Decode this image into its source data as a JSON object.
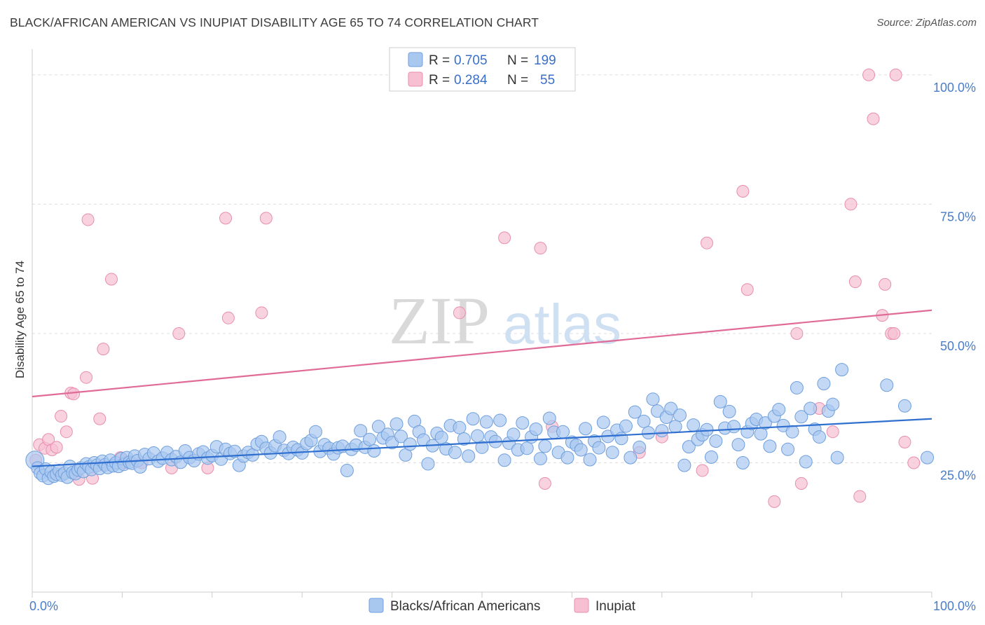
{
  "title": "BLACK/AFRICAN AMERICAN VS INUPIAT DISABILITY AGE 65 TO 74 CORRELATION CHART",
  "source": "Source: ZipAtlas.com",
  "watermark": {
    "zip": "ZIP",
    "atlas": "atlas"
  },
  "colors": {
    "blue_fill": "#a9c8f0",
    "blue_stroke": "#6f9fdc",
    "blue_line": "#2f6fd0",
    "pink_fill": "#f7bfd2",
    "pink_stroke": "#e88eb0",
    "pink_line": "#e06b96",
    "axis_text": "#4a7cc7",
    "grid": "#dddddd"
  },
  "legend": {
    "rows": [
      {
        "r_label": "R =",
        "r_value": "0.705",
        "n_label": "N =",
        "n_value": "199"
      },
      {
        "r_label": "R =",
        "r_value": "0.284",
        "n_label": "N =",
        "n_value": "55"
      }
    ]
  },
  "chart_data": {
    "type": "scatter",
    "xlabel": "",
    "ylabel": "Disability Age 65 to 74",
    "xlim": [
      0,
      100
    ],
    "ylim": [
      0,
      105
    ],
    "x_tick_labels": [
      {
        "value": 0,
        "label": "0.0%"
      },
      {
        "value": 100,
        "label": "100.0%"
      }
    ],
    "y_tick_labels": [
      {
        "value": 25,
        "label": "25.0%"
      },
      {
        "value": 50,
        "label": "50.0%"
      },
      {
        "value": 75,
        "label": "75.0%"
      },
      {
        "value": 100,
        "label": "100.0%"
      }
    ],
    "grid": true,
    "legend_position": "top-center",
    "series": [
      {
        "name": "Blacks/African Americans",
        "color": "#a9c8f0",
        "trend": {
          "x": [
            0,
            100
          ],
          "y": [
            24.3,
            33.5
          ]
        },
        "points": [
          [
            0.3,
            25.5
          ],
          [
            0.6,
            24.0
          ],
          [
            0.9,
            23.0
          ],
          [
            1.2,
            22.5
          ],
          [
            1.5,
            23.8
          ],
          [
            1.8,
            22.0
          ],
          [
            2.1,
            23.2
          ],
          [
            2.4,
            22.4
          ],
          [
            2.7,
            22.8
          ],
          [
            3.0,
            23.5
          ],
          [
            3.3,
            22.6
          ],
          [
            3.6,
            23.0
          ],
          [
            3.9,
            22.2
          ],
          [
            4.2,
            24.3
          ],
          [
            4.5,
            23.1
          ],
          [
            4.8,
            22.9
          ],
          [
            5.1,
            23.6
          ],
          [
            5.4,
            24.0
          ],
          [
            5.7,
            23.3
          ],
          [
            6.0,
            24.8
          ],
          [
            6.3,
            24.2
          ],
          [
            6.6,
            23.7
          ],
          [
            6.9,
            25.0
          ],
          [
            7.2,
            24.5
          ],
          [
            7.5,
            23.9
          ],
          [
            7.8,
            25.3
          ],
          [
            8.1,
            24.6
          ],
          [
            8.4,
            24.1
          ],
          [
            8.7,
            25.5
          ],
          [
            9.0,
            24.4
          ],
          [
            9.3,
            25.0
          ],
          [
            9.6,
            24.3
          ],
          [
            9.9,
            25.8
          ],
          [
            10.2,
            24.7
          ],
          [
            10.5,
            26.0
          ],
          [
            10.8,
            25.1
          ],
          [
            11.1,
            24.9
          ],
          [
            11.4,
            26.3
          ],
          [
            11.7,
            25.4
          ],
          [
            12.0,
            24.2
          ],
          [
            12.5,
            26.6
          ],
          [
            13.0,
            25.8
          ],
          [
            13.5,
            26.9
          ],
          [
            14.0,
            25.3
          ],
          [
            14.5,
            25.9
          ],
          [
            15.0,
            27.0
          ],
          [
            15.5,
            25.6
          ],
          [
            16.0,
            26.2
          ],
          [
            16.5,
            25.1
          ],
          [
            17.0,
            27.3
          ],
          [
            17.5,
            26.0
          ],
          [
            18.0,
            25.4
          ],
          [
            18.5,
            26.7
          ],
          [
            19.0,
            27.1
          ],
          [
            19.5,
            25.9
          ],
          [
            20.0,
            26.4
          ],
          [
            20.5,
            28.1
          ],
          [
            21.0,
            25.7
          ],
          [
            21.5,
            27.6
          ],
          [
            22.0,
            26.8
          ],
          [
            22.5,
            27.2
          ],
          [
            23.0,
            24.5
          ],
          [
            23.5,
            26.3
          ],
          [
            24.0,
            27.0
          ],
          [
            24.5,
            26.5
          ],
          [
            25.0,
            28.6
          ],
          [
            25.5,
            29.1
          ],
          [
            26.0,
            27.8
          ],
          [
            26.5,
            26.9
          ],
          [
            27.0,
            28.3
          ],
          [
            27.5,
            30.0
          ],
          [
            28.0,
            27.4
          ],
          [
            28.5,
            26.8
          ],
          [
            29.0,
            28.0
          ],
          [
            29.5,
            27.5
          ],
          [
            30.0,
            26.9
          ],
          [
            30.5,
            28.7
          ],
          [
            31.0,
            29.3
          ],
          [
            31.5,
            31.0
          ],
          [
            32.0,
            27.2
          ],
          [
            32.5,
            28.5
          ],
          [
            33.0,
            27.8
          ],
          [
            33.5,
            26.7
          ],
          [
            34.0,
            27.9
          ],
          [
            34.5,
            28.2
          ],
          [
            35.0,
            23.5
          ],
          [
            35.5,
            27.6
          ],
          [
            36.0,
            28.4
          ],
          [
            36.5,
            31.2
          ],
          [
            37.0,
            28.0
          ],
          [
            37.5,
            29.5
          ],
          [
            38.0,
            27.3
          ],
          [
            38.5,
            32.0
          ],
          [
            39.0,
            29.8
          ],
          [
            39.5,
            30.5
          ],
          [
            40.0,
            28.9
          ],
          [
            40.5,
            32.5
          ],
          [
            41.0,
            30.1
          ],
          [
            41.5,
            26.5
          ],
          [
            42.0,
            28.6
          ],
          [
            42.5,
            33.0
          ],
          [
            43.0,
            31.0
          ],
          [
            43.5,
            29.4
          ],
          [
            44.0,
            24.8
          ],
          [
            44.5,
            28.3
          ],
          [
            45.0,
            30.7
          ],
          [
            45.5,
            29.9
          ],
          [
            46.0,
            27.7
          ],
          [
            46.5,
            32.2
          ],
          [
            47.0,
            27.0
          ],
          [
            47.5,
            31.8
          ],
          [
            48.0,
            29.6
          ],
          [
            48.5,
            26.3
          ],
          [
            49.0,
            33.5
          ],
          [
            49.5,
            30.2
          ],
          [
            50.0,
            28.0
          ],
          [
            50.5,
            32.9
          ],
          [
            51.0,
            30.0
          ],
          [
            51.5,
            29.1
          ],
          [
            52.0,
            33.2
          ],
          [
            52.5,
            25.5
          ],
          [
            53.0,
            28.8
          ],
          [
            53.5,
            30.5
          ],
          [
            54.0,
            27.5
          ],
          [
            54.5,
            32.7
          ],
          [
            55.0,
            27.8
          ],
          [
            55.5,
            30.0
          ],
          [
            56.0,
            31.5
          ],
          [
            56.5,
            25.8
          ],
          [
            57.0,
            28.2
          ],
          [
            57.5,
            33.6
          ],
          [
            58.0,
            30.9
          ],
          [
            58.5,
            27.0
          ],
          [
            59.0,
            31.0
          ],
          [
            59.5,
            26.0
          ],
          [
            60.0,
            29.0
          ],
          [
            60.5,
            28.4
          ],
          [
            61.0,
            27.5
          ],
          [
            61.5,
            31.6
          ],
          [
            62.0,
            25.6
          ],
          [
            62.5,
            29.2
          ],
          [
            63.0,
            27.9
          ],
          [
            63.5,
            32.8
          ],
          [
            64.0,
            30.1
          ],
          [
            64.5,
            27.0
          ],
          [
            65.0,
            31.3
          ],
          [
            65.5,
            29.7
          ],
          [
            66.0,
            32.1
          ],
          [
            66.5,
            26.0
          ],
          [
            67.0,
            34.8
          ],
          [
            67.5,
            28.0
          ],
          [
            68.0,
            33.0
          ],
          [
            68.5,
            30.8
          ],
          [
            69.0,
            37.3
          ],
          [
            69.5,
            35.0
          ],
          [
            70.0,
            31.2
          ],
          [
            70.5,
            33.8
          ],
          [
            71.0,
            35.5
          ],
          [
            71.5,
            32.0
          ],
          [
            72.0,
            34.2
          ],
          [
            72.5,
            24.5
          ],
          [
            73.0,
            28.1
          ],
          [
            73.5,
            32.3
          ],
          [
            74.0,
            29.5
          ],
          [
            74.5,
            30.4
          ],
          [
            75.0,
            31.4
          ],
          [
            75.5,
            26.1
          ],
          [
            76.0,
            29.2
          ],
          [
            76.5,
            36.8
          ],
          [
            77.0,
            31.7
          ],
          [
            77.5,
            34.9
          ],
          [
            78.0,
            32.0
          ],
          [
            78.5,
            28.5
          ],
          [
            79.0,
            25.0
          ],
          [
            79.5,
            31.0
          ],
          [
            80.0,
            32.6
          ],
          [
            80.5,
            33.4
          ],
          [
            81.0,
            30.6
          ],
          [
            81.5,
            32.7
          ],
          [
            82.0,
            28.2
          ],
          [
            82.5,
            34.0
          ],
          [
            83.0,
            35.3
          ],
          [
            83.5,
            32.2
          ],
          [
            84.0,
            27.6
          ],
          [
            84.5,
            31.0
          ],
          [
            85.0,
            39.5
          ],
          [
            85.5,
            33.9
          ],
          [
            86.0,
            25.2
          ],
          [
            86.5,
            35.5
          ],
          [
            87.0,
            31.5
          ],
          [
            87.5,
            30.0
          ],
          [
            88.0,
            40.3
          ],
          [
            88.5,
            35.0
          ],
          [
            89.0,
            36.3
          ],
          [
            89.5,
            26.0
          ],
          [
            90.0,
            43.0
          ],
          [
            95.0,
            40.0
          ],
          [
            97.0,
            36.0
          ],
          [
            99.5,
            26.0
          ]
        ]
      },
      {
        "name": "Inupiat",
        "color": "#f7bfd2",
        "trend": {
          "x": [
            0,
            100
          ],
          "y": [
            37.8,
            54.5
          ]
        },
        "points": [
          [
            0.4,
            25.5
          ],
          [
            0.8,
            28.5
          ],
          [
            1.4,
            27.8
          ],
          [
            1.8,
            29.5
          ],
          [
            2.2,
            27.5
          ],
          [
            2.7,
            28.0
          ],
          [
            3.2,
            34.0
          ],
          [
            3.8,
            31.0
          ],
          [
            4.3,
            38.5
          ],
          [
            4.6,
            38.3
          ],
          [
            5.2,
            21.8
          ],
          [
            6.0,
            41.5
          ],
          [
            6.2,
            72.0
          ],
          [
            6.7,
            22.0
          ],
          [
            7.5,
            33.5
          ],
          [
            7.9,
            47.0
          ],
          [
            8.8,
            60.5
          ],
          [
            9.8,
            26.0
          ],
          [
            10.2,
            25.0
          ],
          [
            12.2,
            25.0
          ],
          [
            15.5,
            24.0
          ],
          [
            16.3,
            50.0
          ],
          [
            19.5,
            24.0
          ],
          [
            21.5,
            72.3
          ],
          [
            21.8,
            53.0
          ],
          [
            25.5,
            54.0
          ],
          [
            26.0,
            72.3
          ],
          [
            47.5,
            54.0
          ],
          [
            52.5,
            68.5
          ],
          [
            56.5,
            66.5
          ],
          [
            57.0,
            21.0
          ],
          [
            57.8,
            32.0
          ],
          [
            67.5,
            27.0
          ],
          [
            70.0,
            30.0
          ],
          [
            74.5,
            23.5
          ],
          [
            75.0,
            67.5
          ],
          [
            79.0,
            77.5
          ],
          [
            79.5,
            58.5
          ],
          [
            82.5,
            17.5
          ],
          [
            85.0,
            50.0
          ],
          [
            85.5,
            21.0
          ],
          [
            87.5,
            35.5
          ],
          [
            89.0,
            31.0
          ],
          [
            91.0,
            75.0
          ],
          [
            91.5,
            60.0
          ],
          [
            92.0,
            18.5
          ],
          [
            93.0,
            100.0
          ],
          [
            93.5,
            91.5
          ],
          [
            94.5,
            53.5
          ],
          [
            94.8,
            59.5
          ],
          [
            95.5,
            50.0
          ],
          [
            95.8,
            50.0
          ],
          [
            96.0,
            100.0
          ],
          [
            97.0,
            29.0
          ],
          [
            98.0,
            25.0
          ]
        ]
      }
    ]
  },
  "bottom_legend": [
    {
      "label": "Blacks/African Americans"
    },
    {
      "label": "Inupiat"
    }
  ]
}
